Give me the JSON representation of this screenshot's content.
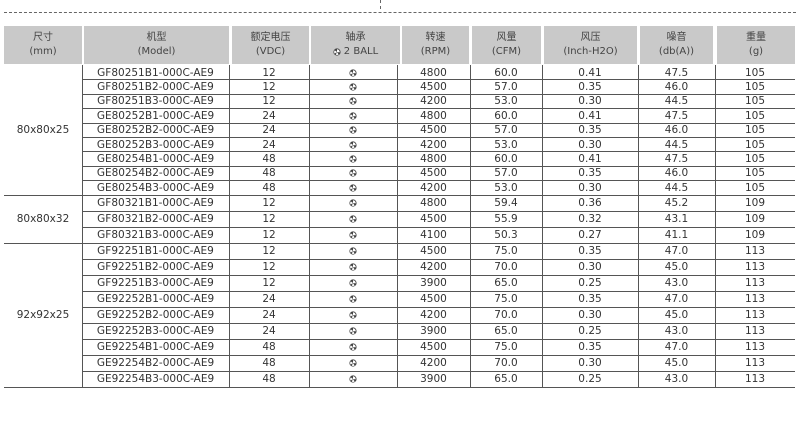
{
  "headers": [
    {
      "line1": "尺寸",
      "line2": "(mm)"
    },
    {
      "line1": "机型",
      "line2": "(Model)"
    },
    {
      "line1": "额定电压",
      "line2": "(VDC)"
    },
    {
      "line1": "轴承",
      "line2": "2 BALL",
      "icon": "ball-bearing-icon"
    },
    {
      "line1": "转速",
      "line2": "(RPM)"
    },
    {
      "line1": "风量",
      "line2": "(CFM)"
    },
    {
      "line1": "风压",
      "line2": "(Inch-H2O)"
    },
    {
      "line1": "噪音",
      "line2": "(db(A))"
    },
    {
      "line1": "重量",
      "line2": "(g)"
    }
  ],
  "groups": [
    {
      "size": "80x80x25",
      "rows": [
        {
          "model": "GF80251B1-000C-AE9",
          "vdc": "12",
          "rpm": "4800",
          "cfm": "60.0",
          "pressure": "0.41",
          "noise": "47.5",
          "weight": "105"
        },
        {
          "model": "GF80251B2-000C-AE9",
          "vdc": "12",
          "rpm": "4500",
          "cfm": "57.0",
          "pressure": "0.35",
          "noise": "46.0",
          "weight": "105"
        },
        {
          "model": "GF80251B3-000C-AE9",
          "vdc": "12",
          "rpm": "4200",
          "cfm": "53.0",
          "pressure": "0.30",
          "noise": "44.5",
          "weight": "105"
        },
        {
          "model": "GE80252B1-000C-AE9",
          "vdc": "24",
          "rpm": "4800",
          "cfm": "60.0",
          "pressure": "0.41",
          "noise": "47.5",
          "weight": "105"
        },
        {
          "model": "GE80252B2-000C-AE9",
          "vdc": "24",
          "rpm": "4500",
          "cfm": "57.0",
          "pressure": "0.35",
          "noise": "46.0",
          "weight": "105"
        },
        {
          "model": "GE80252B3-000C-AE9",
          "vdc": "24",
          "rpm": "4200",
          "cfm": "53.0",
          "pressure": "0.30",
          "noise": "44.5",
          "weight": "105"
        },
        {
          "model": "GE80254B1-000C-AE9",
          "vdc": "48",
          "rpm": "4800",
          "cfm": "60.0",
          "pressure": "0.41",
          "noise": "47.5",
          "weight": "105"
        },
        {
          "model": "GE80254B2-000C-AE9",
          "vdc": "48",
          "rpm": "4500",
          "cfm": "57.0",
          "pressure": "0.35",
          "noise": "46.0",
          "weight": "105"
        },
        {
          "model": "GE80254B3-000C-AE9",
          "vdc": "48",
          "rpm": "4200",
          "cfm": "53.0",
          "pressure": "0.30",
          "noise": "44.5",
          "weight": "105"
        }
      ]
    },
    {
      "size": "80x80x32",
      "rows": [
        {
          "model": "GF80321B1-000C-AE9",
          "vdc": "12",
          "rpm": "4800",
          "cfm": "59.4",
          "pressure": "0.36",
          "noise": "45.2",
          "weight": "109"
        },
        {
          "model": "GF80321B2-000C-AE9",
          "vdc": "12",
          "rpm": "4500",
          "cfm": "55.9",
          "pressure": "0.32",
          "noise": "43.1",
          "weight": "109"
        },
        {
          "model": "GF80321B3-000C-AE9",
          "vdc": "12",
          "rpm": "4100",
          "cfm": "50.3",
          "pressure": "0.27",
          "noise": "41.1",
          "weight": "109"
        }
      ]
    },
    {
      "size": "92x92x25",
      "rows": [
        {
          "model": "GF92251B1-000C-AE9",
          "vdc": "12",
          "rpm": "4500",
          "cfm": "75.0",
          "pressure": "0.35",
          "noise": "47.0",
          "weight": "113"
        },
        {
          "model": "GF92251B2-000C-AE9",
          "vdc": "12",
          "rpm": "4200",
          "cfm": "70.0",
          "pressure": "0.30",
          "noise": "45.0",
          "weight": "113"
        },
        {
          "model": "GF92251B3-000C-AE9",
          "vdc": "12",
          "rpm": "3900",
          "cfm": "65.0",
          "pressure": "0.25",
          "noise": "43.0",
          "weight": "113"
        },
        {
          "model": "GE92252B1-000C-AE9",
          "vdc": "24",
          "rpm": "4500",
          "cfm": "75.0",
          "pressure": "0.35",
          "noise": "47.0",
          "weight": "113"
        },
        {
          "model": "GE92252B2-000C-AE9",
          "vdc": "24",
          "rpm": "4200",
          "cfm": "70.0",
          "pressure": "0.30",
          "noise": "45.0",
          "weight": "113"
        },
        {
          "model": "GE92252B3-000C-AE9",
          "vdc": "24",
          "rpm": "3900",
          "cfm": "65.0",
          "pressure": "0.25",
          "noise": "43.0",
          "weight": "113"
        },
        {
          "model": "GE92254B1-000C-AE9",
          "vdc": "48",
          "rpm": "4500",
          "cfm": "75.0",
          "pressure": "0.35",
          "noise": "47.0",
          "weight": "113"
        },
        {
          "model": "GE92254B2-000C-AE9",
          "vdc": "48",
          "rpm": "4200",
          "cfm": "70.0",
          "pressure": "0.30",
          "noise": "45.0",
          "weight": "113"
        },
        {
          "model": "GE92254B3-000C-AE9",
          "vdc": "48",
          "rpm": "3900",
          "cfm": "65.0",
          "pressure": "0.25",
          "noise": "43.0",
          "weight": "113"
        }
      ]
    }
  ],
  "bearing_icon": "ball-bearing-icon",
  "colors": {
    "header_bg": "#c9c9c9",
    "rule": "#555555"
  }
}
